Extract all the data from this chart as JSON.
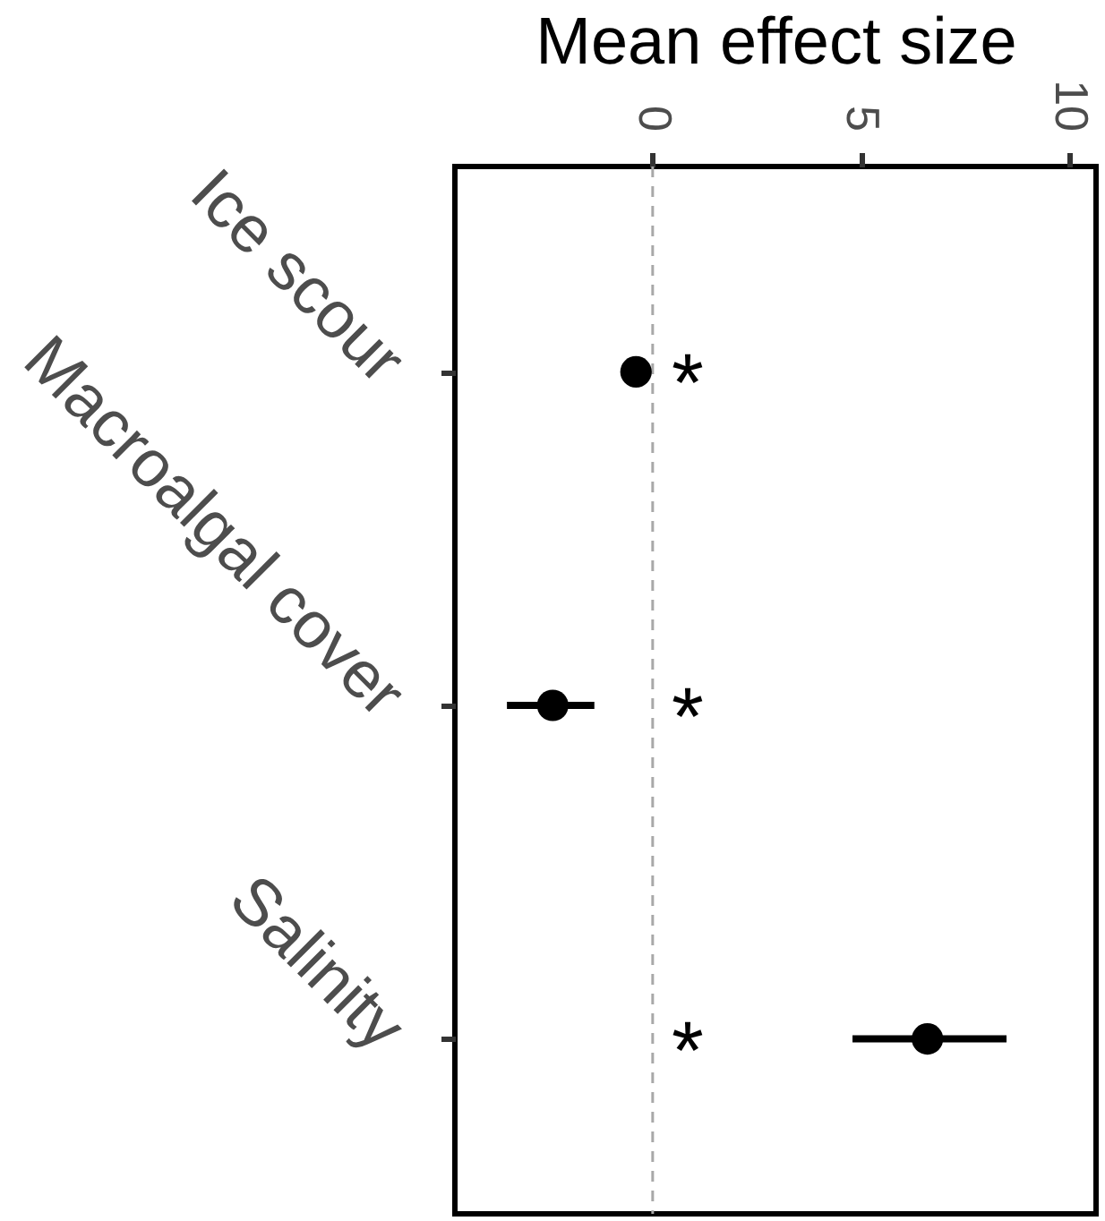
{
  "chart_data": {
    "type": "scatter",
    "orientation": "horizontal",
    "xlabel": "Mean effect size",
    "categories": [
      "Ice scour",
      "Macroalgal cover",
      "Salinity"
    ],
    "values": [
      -0.4,
      -2.4,
      6.6
    ],
    "errors": [
      null,
      [
        -3.5,
        -1.4
      ],
      [
        4.8,
        8.5
      ]
    ],
    "color": "#000000",
    "marker": "circle",
    "xlim": [
      -4.75,
      10.65
    ],
    "xticks": [
      0,
      5,
      10
    ],
    "ref_lines": [
      {
        "axis": "x",
        "value": 0,
        "color": "#a8a8a8",
        "line_style": "dashed"
      }
    ],
    "annotations": [
      "*",
      "*",
      "*"
    ]
  }
}
